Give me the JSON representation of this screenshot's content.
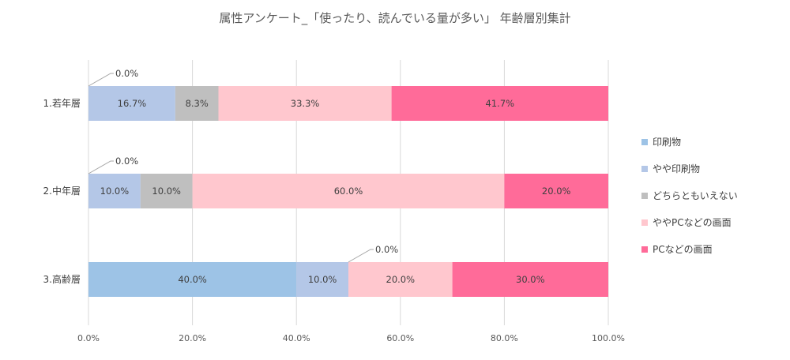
{
  "chart_data": {
    "type": "bar",
    "orientation": "horizontal",
    "stacked": "percent",
    "title": "属性アンケート_「使ったり、読んでいる量が多い」 年齢層別集計",
    "categories": [
      "1.若年層",
      "2.中年層",
      "3.高齢層"
    ],
    "series": [
      {
        "name": "印刷物",
        "color": "#9dc3e6",
        "values": [
          0.0,
          0.0,
          40.0
        ],
        "labels": [
          "0.0%",
          "0.0%",
          "40.0%"
        ]
      },
      {
        "name": "やや印刷物",
        "color": "#b4c7e7",
        "values": [
          16.7,
          10.0,
          10.0
        ],
        "labels": [
          "16.7%",
          "10.0%",
          "10.0%"
        ]
      },
      {
        "name": "どちらともいえない",
        "color": "#bfbfbf",
        "values": [
          8.3,
          10.0,
          0.0
        ],
        "labels": [
          "8.3%",
          "10.0%",
          "0.0%"
        ]
      },
      {
        "name": "ややPCなどの画面",
        "color": "#ffc7ce",
        "values": [
          33.3,
          60.0,
          20.0
        ],
        "labels": [
          "33.3%",
          "60.0%",
          "20.0%"
        ]
      },
      {
        "name": "PCなどの画面",
        "color": "#ff6b99",
        "values": [
          41.7,
          20.0,
          30.0
        ],
        "labels": [
          "41.7%",
          "20.0%",
          "30.0%"
        ]
      }
    ],
    "x_ticks": [
      "0.0%",
      "20.0%",
      "40.0%",
      "60.0%",
      "80.0%",
      "100.0%"
    ],
    "xlim": [
      0,
      100
    ],
    "grid": true,
    "legend_position": "right"
  }
}
